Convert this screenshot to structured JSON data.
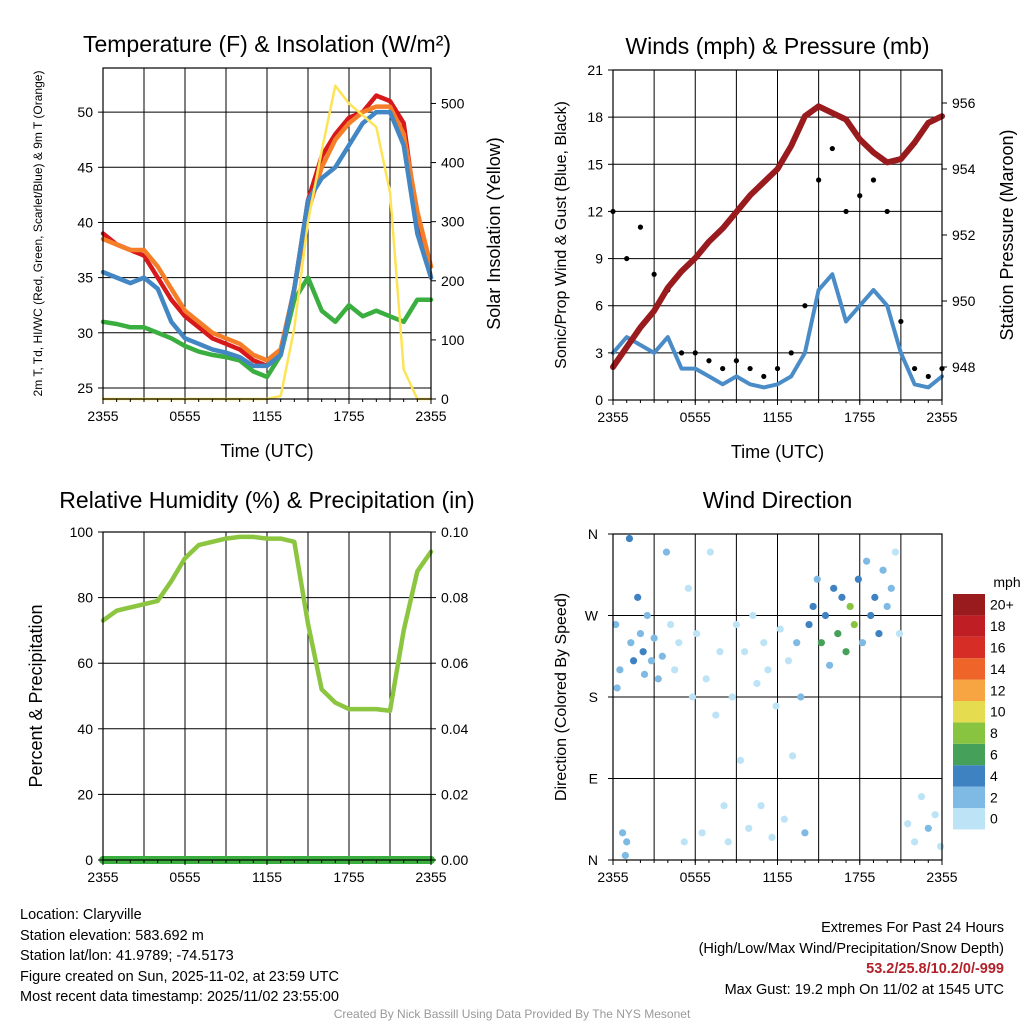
{
  "chart_data": [
    {
      "type": "line",
      "title": "Temperature (F) & Insolation (W/m²)",
      "xlabel": "Time (UTC)",
      "ylabel_left": "2m T, Td, HI/WC (Red, Green, Scarlet/Blue) & 9m T (Orange)",
      "ylabel_right": "Solar Insolation (Yellow)",
      "x_ticks": [
        "2355",
        "0555",
        "1155",
        "1755",
        "2355"
      ],
      "ylim_left": [
        24,
        54
      ],
      "ylim_right": [
        0,
        560
      ],
      "yticks_left": [
        25,
        30,
        35,
        40,
        45,
        50
      ],
      "yticks_right": [
        0,
        100,
        200,
        300,
        400,
        500
      ],
      "x_hours": [
        0,
        1,
        2,
        3,
        4,
        5,
        6,
        7,
        8,
        9,
        10,
        11,
        12,
        13,
        14,
        15,
        16,
        17,
        18,
        19,
        20,
        21,
        22,
        23,
        24
      ],
      "series": [
        {
          "name": "2m T",
          "color": "#d7191c",
          "axis": "left",
          "values": [
            39,
            38,
            37.5,
            37,
            35,
            33,
            31.5,
            30.5,
            29.5,
            29,
            28.5,
            27.5,
            27,
            28,
            34,
            42,
            46,
            48,
            49.5,
            50,
            51.5,
            51,
            49,
            40,
            35
          ]
        },
        {
          "name": "9m T",
          "color": "#f57f29",
          "axis": "left",
          "values": [
            38.5,
            38,
            37.5,
            37.5,
            36,
            34,
            32,
            31,
            30,
            29.5,
            29,
            28,
            27.5,
            28.5,
            34,
            41,
            45,
            47.5,
            49,
            50,
            50.5,
            50.5,
            48,
            41,
            36
          ]
        },
        {
          "name": "Td",
          "color": "#3aae3f",
          "axis": "left",
          "values": [
            31,
            30.8,
            30.5,
            30.5,
            30,
            29.5,
            28.8,
            28.3,
            28,
            27.8,
            27.5,
            26.5,
            26,
            28,
            33,
            35,
            32,
            31,
            32.5,
            31.5,
            32,
            31.5,
            31,
            33,
            33
          ]
        },
        {
          "name": "WC",
          "color": "#4287c4",
          "axis": "left",
          "values": [
            35.5,
            35,
            34.5,
            35,
            34,
            31,
            29.5,
            29,
            28.5,
            28.2,
            27.8,
            27,
            27,
            28,
            34,
            42,
            44,
            45,
            47,
            49,
            50,
            50,
            47,
            39,
            35
          ]
        },
        {
          "name": "Solar Insolation",
          "color": "#fde456",
          "axis": "right",
          "values": [
            0,
            0,
            0,
            0,
            0,
            0,
            0,
            0,
            0,
            0,
            0,
            0,
            0,
            5,
            120,
            300,
            420,
            530,
            500,
            480,
            460,
            350,
            50,
            0,
            0
          ]
        }
      ]
    },
    {
      "type": "line",
      "title": "Winds (mph) & Pressure (mb)",
      "xlabel": "Time (UTC)",
      "ylabel_left": "Sonic/Prop Wind & Gust (Blue, Black)",
      "ylabel_right": "Station Pressure (Maroon)",
      "x_ticks": [
        "2355",
        "0555",
        "1155",
        "1755",
        "2355"
      ],
      "ylim_left": [
        0,
        21
      ],
      "ylim_right": [
        947,
        957
      ],
      "yticks_left": [
        0,
        3,
        6,
        9,
        12,
        15,
        18,
        21
      ],
      "yticks_right": [
        948,
        950,
        952,
        954,
        956
      ],
      "x_hours": [
        0,
        1,
        2,
        3,
        4,
        5,
        6,
        7,
        8,
        9,
        10,
        11,
        12,
        13,
        14,
        15,
        16,
        17,
        18,
        19,
        20,
        21,
        22,
        23,
        24
      ],
      "series": [
        {
          "name": "Sonic Wind",
          "color": "#4a8cc8",
          "axis": "left",
          "values": [
            3,
            4,
            3.5,
            3,
            4,
            2,
            2,
            1.5,
            1,
            1.5,
            1,
            0.8,
            1,
            1.5,
            3,
            7,
            8,
            5,
            6,
            7,
            6,
            3,
            1,
            0.8,
            1.5
          ]
        },
        {
          "name": "Gust",
          "color": "#000000",
          "axis": "left",
          "values": [
            12,
            9,
            11,
            8,
            7,
            3,
            3,
            2.5,
            2,
            2.5,
            2,
            1.5,
            2,
            3,
            6,
            14,
            16,
            12,
            13,
            14,
            12,
            5,
            2,
            1.5,
            2
          ]
        },
        {
          "name": "Station Pressure",
          "color": "#991b1e",
          "axis": "right",
          "values": [
            948,
            948.6,
            949.2,
            949.7,
            950.4,
            950.9,
            951.3,
            951.8,
            952.2,
            952.7,
            953.2,
            953.6,
            954,
            954.7,
            955.6,
            955.9,
            955.7,
            955.5,
            954.9,
            954.5,
            954.2,
            954.3,
            954.8,
            955.4,
            955.6
          ]
        }
      ]
    },
    {
      "type": "line",
      "title": "Relative Humidity (%) & Precipitation (in)",
      "xlabel": "",
      "ylabel_left": "Percent & Precipitation",
      "x_ticks": [
        "2355",
        "0555",
        "1155",
        "1755",
        "2355"
      ],
      "ylim_left": [
        0,
        100
      ],
      "ylim_right": [
        0,
        0.1
      ],
      "yticks_left": [
        0,
        20,
        40,
        60,
        80,
        100
      ],
      "yticks_right": [
        "0.00",
        "0.02",
        "0.04",
        "0.06",
        "0.08",
        "0.10"
      ],
      "x_hours": [
        0,
        1,
        2,
        3,
        4,
        5,
        6,
        7,
        8,
        9,
        10,
        11,
        12,
        13,
        14,
        15,
        16,
        17,
        18,
        19,
        20,
        21,
        22,
        23,
        24
      ],
      "series": [
        {
          "name": "Relative Humidity",
          "color": "#8cc540",
          "axis": "left",
          "values": [
            73,
            76,
            77,
            78,
            79,
            85,
            92,
            96,
            97,
            98,
            98.5,
            98.5,
            98,
            98,
            97,
            72,
            52,
            48,
            46,
            46,
            46,
            45.5,
            70,
            88,
            94
          ]
        },
        {
          "name": "Precipitation",
          "color": "#3aae3f",
          "axis": "left",
          "values": [
            0,
            0,
            0,
            0,
            0,
            0,
            0,
            0,
            0,
            0,
            0,
            0,
            0,
            0,
            0,
            0,
            0,
            0,
            0,
            0,
            0,
            0,
            0,
            0,
            0
          ]
        }
      ]
    },
    {
      "type": "scatter",
      "title": "Wind Direction",
      "ylabel": "Direction (Colored By Speed)",
      "x_ticks": [
        "2355",
        "0555",
        "1155",
        "1755",
        "2355"
      ],
      "y_ticks": [
        "N",
        "E",
        "S",
        "W",
        "N"
      ],
      "ylim": [
        0,
        360
      ],
      "legend_title": "mph",
      "colorbar": [
        {
          "label": "0",
          "color": "#bde3f6"
        },
        {
          "label": "2",
          "color": "#7fbae4"
        },
        {
          "label": "4",
          "color": "#3e82c2"
        },
        {
          "label": "6",
          "color": "#45a05a"
        },
        {
          "label": "8",
          "color": "#88c440"
        },
        {
          "label": "10",
          "color": "#e5dd4f"
        },
        {
          "label": "12",
          "color": "#f7a443"
        },
        {
          "label": "14",
          "color": "#ef6428"
        },
        {
          "label": "16",
          "color": "#d62e27"
        },
        {
          "label": "18",
          "color": "#be1e24"
        },
        {
          "label": "20+",
          "color": "#991b1e"
        }
      ],
      "points": [
        [
          0.2,
          260,
          3
        ],
        [
          0.3,
          190,
          2
        ],
        [
          0.5,
          210,
          3
        ],
        [
          0.7,
          30,
          3
        ],
        [
          0.9,
          5,
          2
        ],
        [
          1.0,
          20,
          3
        ],
        [
          1.2,
          355,
          4
        ],
        [
          1.3,
          240,
          3
        ],
        [
          1.5,
          220,
          4
        ],
        [
          1.8,
          290,
          4
        ],
        [
          2.0,
          250,
          3
        ],
        [
          2.2,
          230,
          4
        ],
        [
          2.3,
          205,
          2
        ],
        [
          2.5,
          270,
          3
        ],
        [
          2.8,
          220,
          2
        ],
        [
          3.0,
          245,
          3
        ],
        [
          3.3,
          200,
          2
        ],
        [
          3.6,
          225,
          2
        ],
        [
          3.9,
          340,
          2
        ],
        [
          4.2,
          260,
          1
        ],
        [
          4.5,
          210,
          1
        ],
        [
          4.8,
          240,
          1
        ],
        [
          5.2,
          20,
          1
        ],
        [
          5.5,
          300,
          1
        ],
        [
          5.8,
          180,
          1
        ],
        [
          6.1,
          250,
          1
        ],
        [
          6.5,
          30,
          1
        ],
        [
          6.8,
          200,
          1
        ],
        [
          7.1,
          340,
          1
        ],
        [
          7.5,
          160,
          1
        ],
        [
          7.8,
          230,
          1
        ],
        [
          8.1,
          60,
          1
        ],
        [
          8.4,
          20,
          1
        ],
        [
          8.7,
          180,
          1
        ],
        [
          9.0,
          260,
          1
        ],
        [
          9.3,
          110,
          1
        ],
        [
          9.6,
          230,
          1
        ],
        [
          9.9,
          35,
          1
        ],
        [
          10.2,
          270,
          1
        ],
        [
          10.5,
          195,
          1
        ],
        [
          10.8,
          60,
          1
        ],
        [
          11.0,
          240,
          1
        ],
        [
          11.3,
          210,
          1
        ],
        [
          11.6,
          25,
          1
        ],
        [
          11.9,
          170,
          1
        ],
        [
          12.2,
          255,
          1
        ],
        [
          12.5,
          45,
          1
        ],
        [
          12.8,
          220,
          1
        ],
        [
          13.1,
          115,
          1
        ],
        [
          13.4,
          240,
          2
        ],
        [
          13.7,
          180,
          2
        ],
        [
          14.0,
          30,
          3
        ],
        [
          14.3,
          260,
          5
        ],
        [
          14.6,
          280,
          4
        ],
        [
          14.9,
          310,
          3
        ],
        [
          15.2,
          240,
          6
        ],
        [
          15.5,
          270,
          5
        ],
        [
          15.8,
          215,
          3
        ],
        [
          16.1,
          300,
          4
        ],
        [
          16.4,
          250,
          7
        ],
        [
          16.7,
          290,
          5
        ],
        [
          17.0,
          230,
          6
        ],
        [
          17.3,
          280,
          8
        ],
        [
          17.6,
          260,
          9
        ],
        [
          17.9,
          310,
          4
        ],
        [
          18.2,
          240,
          3
        ],
        [
          18.5,
          330,
          3
        ],
        [
          18.8,
          270,
          4
        ],
        [
          19.1,
          290,
          5
        ],
        [
          19.4,
          250,
          4
        ],
        [
          19.7,
          320,
          3
        ],
        [
          20.0,
          280,
          2
        ],
        [
          20.3,
          300,
          2
        ],
        [
          20.6,
          340,
          1
        ],
        [
          20.9,
          250,
          1
        ],
        [
          21.5,
          40,
          1
        ],
        [
          22.0,
          20,
          1
        ],
        [
          22.5,
          70,
          1
        ],
        [
          23.0,
          35,
          2
        ],
        [
          23.5,
          50,
          1
        ],
        [
          23.9,
          15,
          1
        ]
      ]
    }
  ],
  "info": {
    "location": "Location: Claryville",
    "elevation": "Station elevation: 583.692 m",
    "latlon": "Station lat/lon: 41.9789; -74.5173",
    "created": "Figure created on Sun, 2025-11-02, at 23:59 UTC",
    "recent": "Most recent data timestamp: 2025/11/02 23:55:00"
  },
  "extremes": {
    "title": "Extremes For Past 24 Hours",
    "subtitle": "(High/Low/Max Wind/Precipitation/Snow Depth)",
    "values": "53.2/25.8/10.2/0/-999",
    "gust": "Max Gust: 19.2 mph On 11/02 at 1545 UTC"
  },
  "credit": "Created By Nick Bassill Using Data Provided By The NYS Mesonet"
}
